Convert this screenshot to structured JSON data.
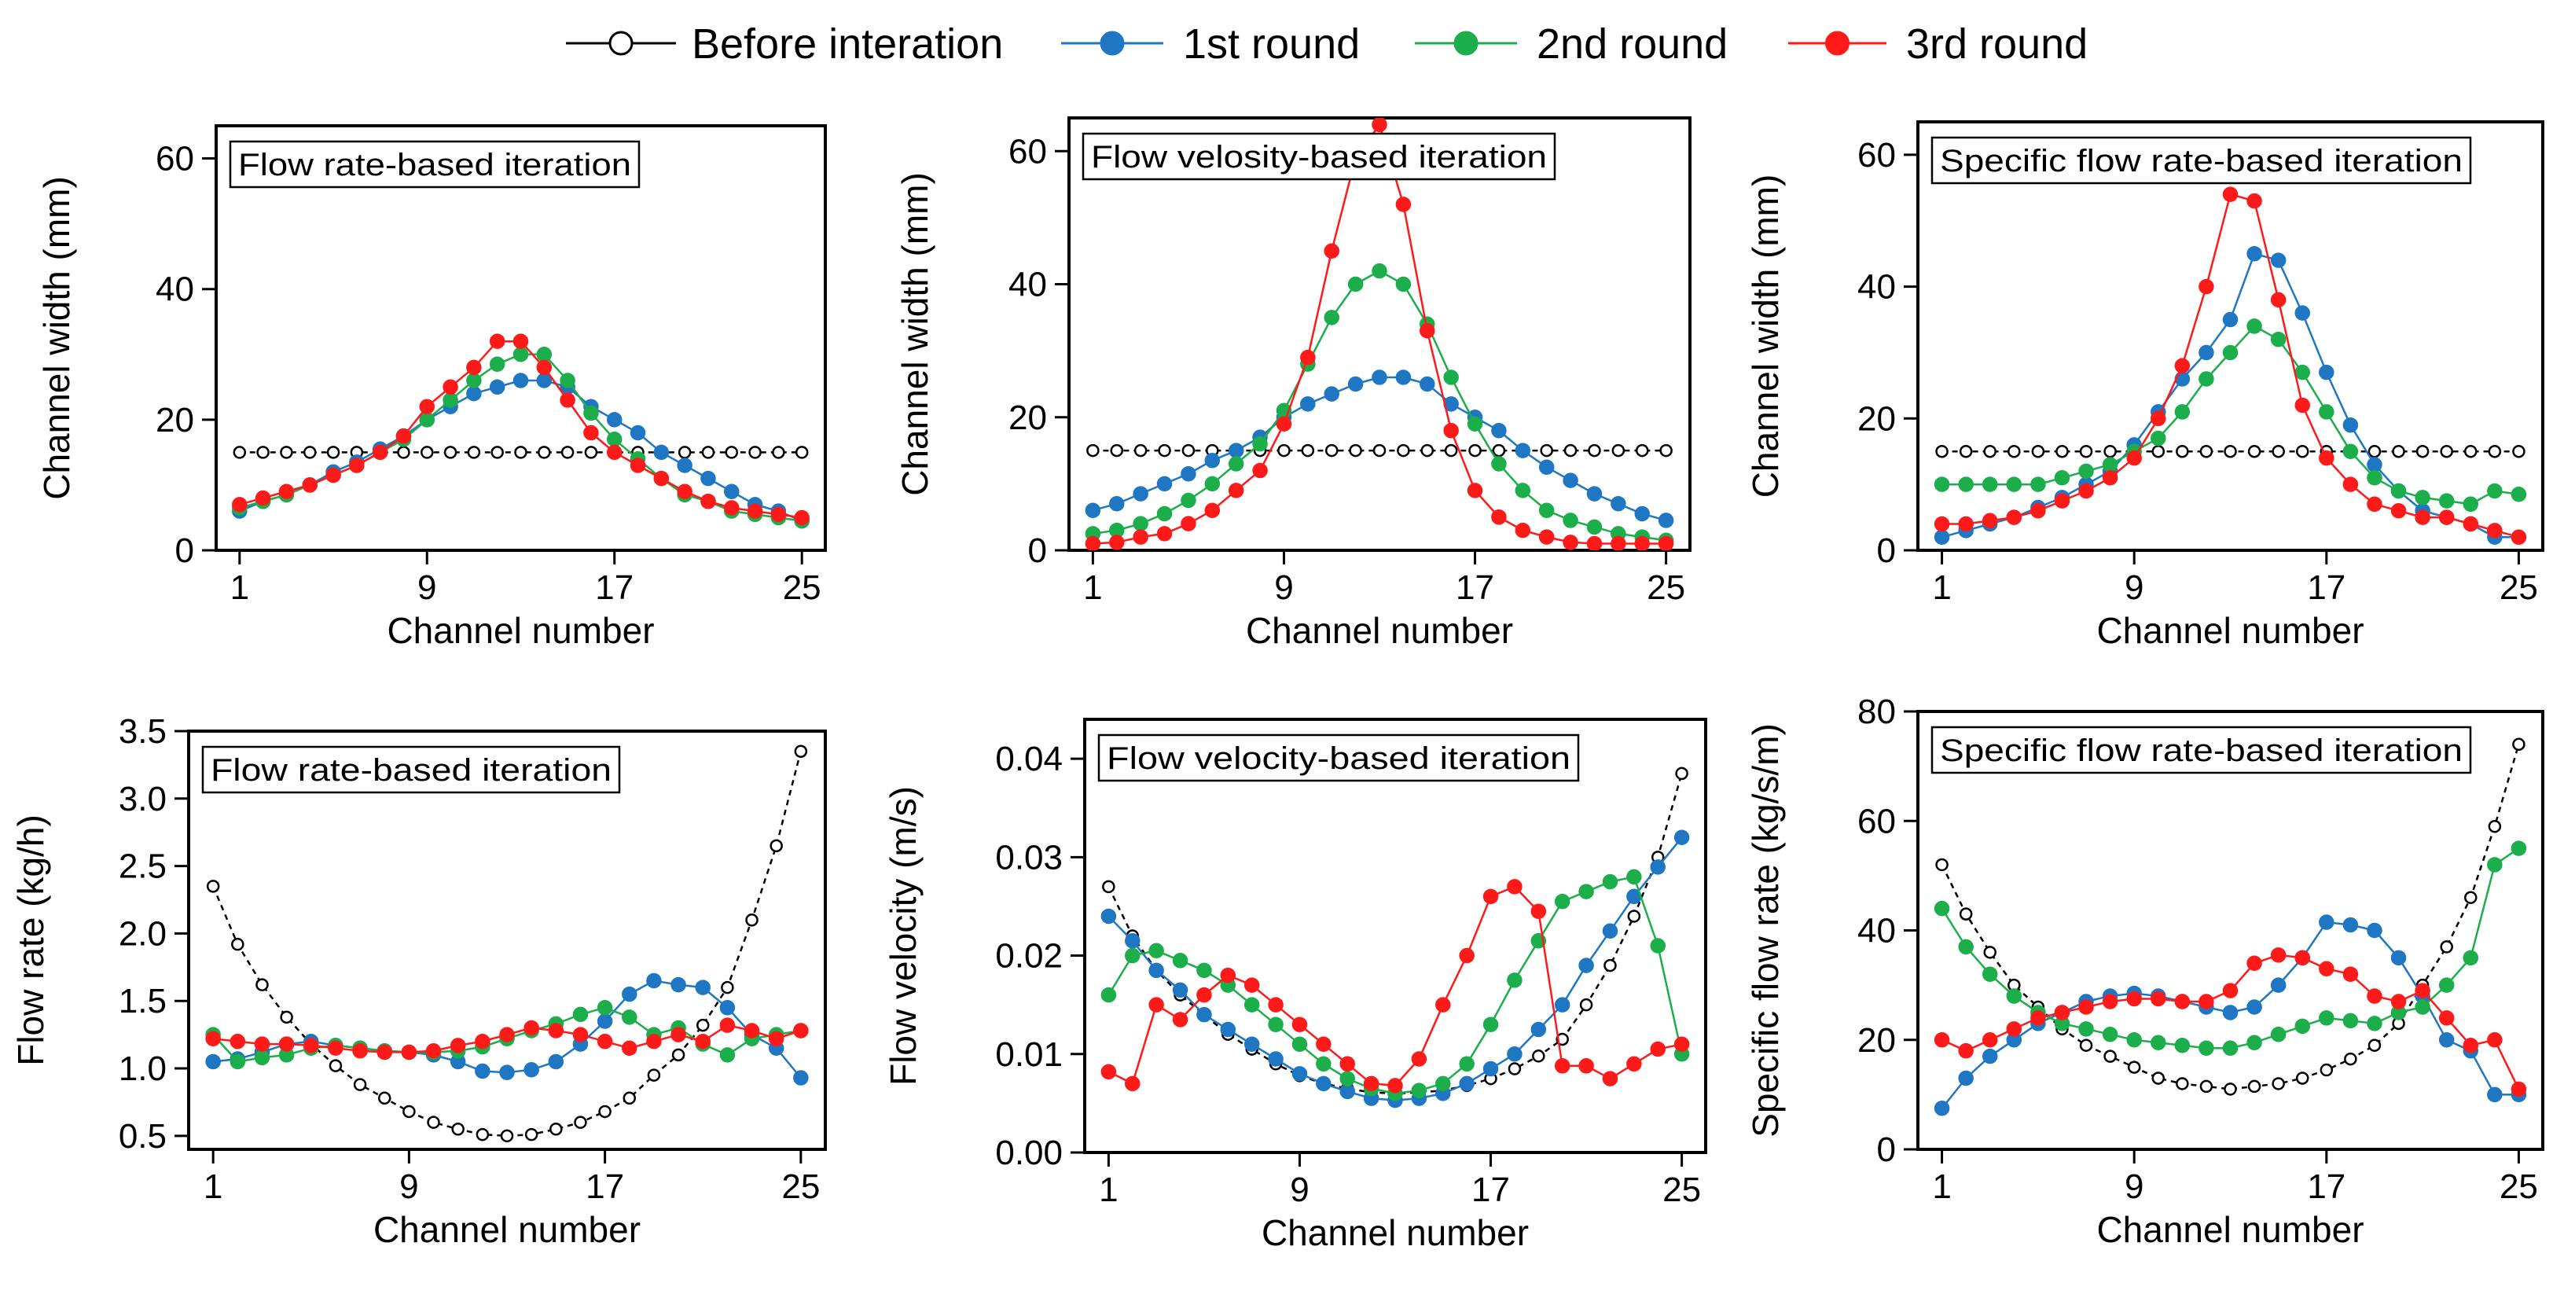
{
  "legend": [
    {
      "name": "Before interation",
      "color": "#000000",
      "marker": "open"
    },
    {
      "name": "1st round",
      "color": "#1f77c4",
      "marker": "filled"
    },
    {
      "name": "2nd round",
      "color": "#1cae4a",
      "marker": "filled"
    },
    {
      "name": "3rd round",
      "color": "#ff1a1a",
      "marker": "filled"
    }
  ],
  "chart_data": [
    {
      "type": "line",
      "title": "Flow rate-based iteration",
      "xlabel": "Channel number",
      "ylabel": "Channel width (mm)",
      "xlim": [
        0,
        26
      ],
      "ylim": [
        0,
        65
      ],
      "xticks": [
        1,
        9,
        17,
        25
      ],
      "yticks": [
        0,
        20,
        40,
        60
      ],
      "x": [
        1,
        2,
        3,
        4,
        5,
        6,
        7,
        8,
        9,
        10,
        11,
        12,
        13,
        14,
        15,
        16,
        17,
        18,
        19,
        20,
        21,
        22,
        23,
        24,
        25
      ],
      "series": [
        {
          "name": "Before interation",
          "values": [
            15,
            15,
            15,
            15,
            15,
            15,
            15,
            15,
            15,
            15,
            15,
            15,
            15,
            15,
            15,
            15,
            15,
            15,
            15,
            15,
            15,
            15,
            15,
            15,
            15
          ]
        },
        {
          "name": "1st round",
          "values": [
            6,
            7.5,
            8.5,
            10,
            12,
            13.5,
            15.5,
            17.5,
            20,
            22,
            24,
            25,
            26,
            26,
            25,
            22,
            20,
            18,
            15,
            13,
            11,
            9,
            7,
            6,
            4.5
          ]
        },
        {
          "name": "2nd round",
          "values": [
            6.5,
            7.5,
            8.5,
            10,
            11.5,
            13,
            15,
            17,
            20,
            23,
            26,
            28.5,
            30,
            30,
            26,
            21,
            17,
            14,
            11,
            8.5,
            7.5,
            6,
            5.5,
            5,
            4.5
          ]
        },
        {
          "name": "3rd round",
          "values": [
            7,
            8,
            9,
            10,
            11.5,
            13,
            15,
            17.5,
            22,
            25,
            28,
            32,
            32,
            28,
            23,
            18,
            15,
            13,
            11,
            9,
            7.5,
            6.5,
            6,
            5.5,
            5
          ]
        }
      ]
    },
    {
      "type": "line",
      "title": "Flow velosity-based iteration",
      "xlabel": "Channel number",
      "ylabel": "Channel width (mm)",
      "xlim": [
        0,
        26
      ],
      "ylim": [
        0,
        65
      ],
      "xticks": [
        1,
        9,
        17,
        25
      ],
      "yticks": [
        0,
        20,
        40,
        60
      ],
      "x": [
        1,
        2,
        3,
        4,
        5,
        6,
        7,
        8,
        9,
        10,
        11,
        12,
        13,
        14,
        15,
        16,
        17,
        18,
        19,
        20,
        21,
        22,
        23,
        24,
        25
      ],
      "series": [
        {
          "name": "Before interation",
          "values": [
            15,
            15,
            15,
            15,
            15,
            15,
            15,
            15,
            15,
            15,
            15,
            15,
            15,
            15,
            15,
            15,
            15,
            15,
            15,
            15,
            15,
            15,
            15,
            15,
            15
          ]
        },
        {
          "name": "1st round",
          "values": [
            6,
            7,
            8.5,
            10,
            11.5,
            13.5,
            15,
            17,
            20,
            22,
            23.5,
            25,
            26,
            26,
            25,
            22,
            20,
            18,
            15,
            12.5,
            10.5,
            8.5,
            7,
            5.5,
            4.5
          ]
        },
        {
          "name": "2nd round",
          "values": [
            2.5,
            3,
            4,
            5.5,
            7.5,
            10,
            13,
            16,
            21,
            28,
            35,
            40,
            42,
            40,
            34,
            26,
            19,
            13,
            9,
            6,
            4.5,
            3.5,
            2.5,
            2,
            1.5
          ]
        },
        {
          "name": "3rd round",
          "values": [
            1,
            1.2,
            2,
            2.5,
            4,
            6,
            9,
            12,
            19,
            29,
            45,
            59,
            64,
            52,
            33,
            18,
            9,
            5,
            3,
            2,
            1.2,
            1,
            1,
            1,
            1
          ]
        }
      ]
    },
    {
      "type": "line",
      "title": "Specific flow rate-based iteration",
      "xlabel": "Channel number",
      "ylabel": "Channel width (mm)",
      "xlim": [
        0,
        26
      ],
      "ylim": [
        0,
        65
      ],
      "xticks": [
        1,
        9,
        17,
        25
      ],
      "yticks": [
        0,
        20,
        40,
        60
      ],
      "x": [
        1,
        2,
        3,
        4,
        5,
        6,
        7,
        8,
        9,
        10,
        11,
        12,
        13,
        14,
        15,
        16,
        17,
        18,
        19,
        20,
        21,
        22,
        23,
        24,
        25
      ],
      "series": [
        {
          "name": "Before interation",
          "values": [
            15,
            15,
            15,
            15,
            15,
            15,
            15,
            15,
            15,
            15,
            15,
            15,
            15,
            15,
            15,
            15,
            15,
            15,
            15,
            15,
            15,
            15,
            15,
            15,
            15
          ]
        },
        {
          "name": "1st round",
          "values": [
            2,
            3,
            4,
            5,
            6.5,
            8,
            10,
            12,
            16,
            21,
            26,
            30,
            35,
            45,
            44,
            36,
            27,
            19,
            13,
            9,
            6,
            5,
            4,
            2,
            2
          ]
        },
        {
          "name": "2nd round",
          "values": [
            10,
            10,
            10,
            10,
            10,
            11,
            12,
            13,
            15,
            17,
            21,
            26,
            30,
            34,
            32,
            27,
            21,
            15,
            11,
            9,
            8,
            7.5,
            7,
            9,
            8.5
          ]
        },
        {
          "name": "3rd round",
          "values": [
            4,
            4,
            4.5,
            5,
            6,
            7.5,
            9,
            11,
            14,
            20,
            28,
            40,
            54,
            53,
            38,
            22,
            14,
            10,
            7,
            6,
            5,
            5,
            4,
            3,
            2
          ]
        }
      ]
    },
    {
      "type": "line",
      "title": "Flow rate-based iteration",
      "xlabel": "Channel number",
      "ylabel": "Flow rate (kg/h)",
      "xlim": [
        0,
        26
      ],
      "ylim": [
        0.4,
        3.5
      ],
      "xticks": [
        1,
        9,
        17,
        25
      ],
      "yticks": [
        0.5,
        1.0,
        1.5,
        2.0,
        2.5,
        3.0,
        3.5
      ],
      "ytick_labels": [
        "0.5",
        "1.0",
        "1.5",
        "2.0",
        "2.5",
        "3.0",
        "3.5"
      ],
      "x": [
        1,
        2,
        3,
        4,
        5,
        6,
        7,
        8,
        9,
        10,
        11,
        12,
        13,
        14,
        15,
        16,
        17,
        18,
        19,
        20,
        21,
        22,
        23,
        24,
        25
      ],
      "series": [
        {
          "name": "Before interation",
          "values": [
            2.35,
            1.92,
            1.62,
            1.38,
            1.18,
            1.02,
            0.88,
            0.78,
            0.68,
            0.6,
            0.55,
            0.51,
            0.5,
            0.51,
            0.55,
            0.6,
            0.68,
            0.78,
            0.95,
            1.1,
            1.32,
            1.6,
            2.1,
            2.65,
            3.35
          ]
        },
        {
          "name": "1st round",
          "values": [
            1.05,
            1.07,
            1.12,
            1.18,
            1.2,
            1.17,
            1.15,
            1.13,
            1.12,
            1.1,
            1.05,
            0.98,
            0.97,
            0.99,
            1.05,
            1.18,
            1.35,
            1.55,
            1.65,
            1.62,
            1.6,
            1.45,
            1.25,
            1.15,
            0.93
          ]
        },
        {
          "name": "2nd round",
          "values": [
            1.25,
            1.05,
            1.08,
            1.1,
            1.15,
            1.17,
            1.15,
            1.13,
            1.12,
            1.12,
            1.13,
            1.16,
            1.22,
            1.28,
            1.33,
            1.4,
            1.45,
            1.38,
            1.25,
            1.3,
            1.18,
            1.1,
            1.22,
            1.25,
            1.28
          ]
        },
        {
          "name": "3rd round",
          "values": [
            1.22,
            1.2,
            1.18,
            1.18,
            1.17,
            1.15,
            1.13,
            1.12,
            1.12,
            1.13,
            1.17,
            1.2,
            1.25,
            1.3,
            1.28,
            1.25,
            1.2,
            1.15,
            1.2,
            1.25,
            1.2,
            1.32,
            1.28,
            1.22,
            1.28
          ]
        }
      ]
    },
    {
      "type": "line",
      "title": "Flow velocity-based iteration",
      "xlabel": "Channel number",
      "ylabel": "Flow velocity (m/s)",
      "xlim": [
        0,
        26
      ],
      "ylim": [
        0,
        0.044
      ],
      "xticks": [
        1,
        9,
        17,
        25
      ],
      "yticks": [
        0,
        0.01,
        0.02,
        0.03,
        0.04
      ],
      "ytick_labels": [
        "0.00",
        "0.01",
        "0.02",
        "0.03",
        "0.04"
      ],
      "x": [
        1,
        2,
        3,
        4,
        5,
        6,
        7,
        8,
        9,
        10,
        11,
        12,
        13,
        14,
        15,
        16,
        17,
        18,
        19,
        20,
        21,
        22,
        23,
        24,
        25
      ],
      "series": [
        {
          "name": "Before interation",
          "values": [
            0.027,
            0.022,
            0.0185,
            0.016,
            0.014,
            0.012,
            0.0105,
            0.009,
            0.0078,
            0.007,
            0.0065,
            0.0061,
            0.006,
            0.0061,
            0.0063,
            0.0068,
            0.0075,
            0.0085,
            0.0098,
            0.0115,
            0.015,
            0.019,
            0.024,
            0.03,
            0.0385
          ]
        },
        {
          "name": "1st round",
          "values": [
            0.024,
            0.0215,
            0.0185,
            0.0165,
            0.014,
            0.0125,
            0.011,
            0.0095,
            0.008,
            0.007,
            0.0062,
            0.0055,
            0.0053,
            0.0055,
            0.006,
            0.007,
            0.0085,
            0.01,
            0.0125,
            0.015,
            0.019,
            0.0225,
            0.026,
            0.029,
            0.032
          ]
        },
        {
          "name": "2nd round",
          "values": [
            0.016,
            0.02,
            0.0205,
            0.0195,
            0.0185,
            0.017,
            0.015,
            0.013,
            0.011,
            0.009,
            0.0075,
            0.0065,
            0.006,
            0.0063,
            0.007,
            0.009,
            0.013,
            0.0175,
            0.0215,
            0.0255,
            0.0265,
            0.0275,
            0.028,
            0.021,
            0.01
          ]
        },
        {
          "name": "3rd round",
          "values": [
            0.0082,
            0.007,
            0.015,
            0.0135,
            0.016,
            0.018,
            0.017,
            0.015,
            0.013,
            0.011,
            0.009,
            0.007,
            0.0068,
            0.0095,
            0.015,
            0.02,
            0.026,
            0.027,
            0.0245,
            0.0088,
            0.0088,
            0.0075,
            0.009,
            0.0105,
            0.011
          ]
        }
      ]
    },
    {
      "type": "line",
      "title": "Specific flow rate-based iteration",
      "xlabel": "Channel number",
      "ylabel": "Specific flow rate (kg/s/m)",
      "xlim": [
        0,
        26
      ],
      "ylim": [
        0,
        80
      ],
      "xticks": [
        1,
        9,
        17,
        25
      ],
      "yticks": [
        0,
        20,
        40,
        60,
        80
      ],
      "x": [
        1,
        2,
        3,
        4,
        5,
        6,
        7,
        8,
        9,
        10,
        11,
        12,
        13,
        14,
        15,
        16,
        17,
        18,
        19,
        20,
        21,
        22,
        23,
        24,
        25
      ],
      "series": [
        {
          "name": "Before interation",
          "values": [
            52,
            43,
            36,
            30,
            26,
            22,
            19,
            17,
            15,
            13,
            12,
            11.5,
            11,
            11.5,
            12,
            13,
            14.5,
            16.5,
            19,
            23,
            30,
            37,
            46,
            59,
            74
          ]
        },
        {
          "name": "1st round",
          "values": [
            7.5,
            13,
            17,
            20,
            23,
            25,
            27,
            28,
            28.5,
            28,
            27,
            26,
            25,
            26,
            30,
            35,
            41.5,
            41,
            40,
            35,
            28,
            20,
            18,
            10,
            10
          ]
        },
        {
          "name": "2nd round",
          "values": [
            44,
            37,
            32,
            28,
            25,
            23,
            22,
            21,
            20,
            19.5,
            19,
            18.5,
            18.5,
            19.5,
            21,
            22.5,
            24,
            23.5,
            23,
            25,
            26,
            30,
            35,
            52,
            55
          ]
        },
        {
          "name": "3rd round",
          "values": [
            20,
            18,
            20,
            22,
            24,
            25,
            26,
            27,
            27.5,
            27.5,
            27,
            27,
            29,
            34,
            35.5,
            35,
            33,
            32,
            28,
            27,
            29,
            24,
            19,
            20,
            11
          ]
        }
      ]
    }
  ]
}
